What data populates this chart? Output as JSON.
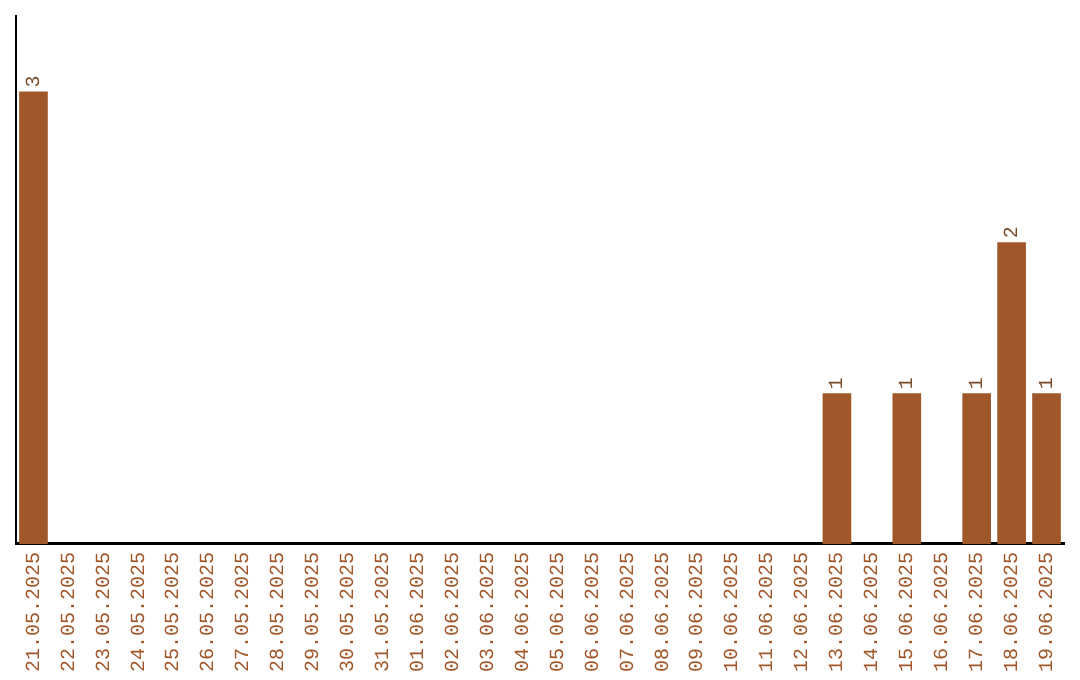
{
  "chart_data": {
    "type": "bar",
    "categories": [
      "21.05.2025",
      "22.05.2025",
      "23.05.2025",
      "24.05.2025",
      "25.05.2025",
      "26.05.2025",
      "27.05.2025",
      "28.05.2025",
      "29.05.2025",
      "30.05.2025",
      "31.05.2025",
      "01.06.2025",
      "02.06.2025",
      "03.06.2025",
      "04.06.2025",
      "05.06.2025",
      "06.06.2025",
      "07.06.2025",
      "08.06.2025",
      "09.06.2025",
      "10.06.2025",
      "11.06.2025",
      "12.06.2025",
      "13.06.2025",
      "14.06.2025",
      "15.06.2025",
      "16.06.2025",
      "17.06.2025",
      "18.06.2025",
      "19.06.2025"
    ],
    "values": [
      3,
      0,
      0,
      0,
      0,
      0,
      0,
      0,
      0,
      0,
      0,
      0,
      0,
      0,
      0,
      0,
      0,
      0,
      0,
      0,
      0,
      0,
      0,
      1,
      0,
      1,
      0,
      1,
      2,
      1
    ],
    "value_labels": [
      "3",
      null,
      null,
      null,
      null,
      null,
      null,
      null,
      null,
      null,
      null,
      null,
      null,
      null,
      null,
      null,
      null,
      null,
      null,
      null,
      null,
      null,
      null,
      "1",
      null,
      "1",
      null,
      "1",
      "2",
      "1"
    ],
    "color": "#a0572a",
    "grid": false,
    "legend": false
  }
}
